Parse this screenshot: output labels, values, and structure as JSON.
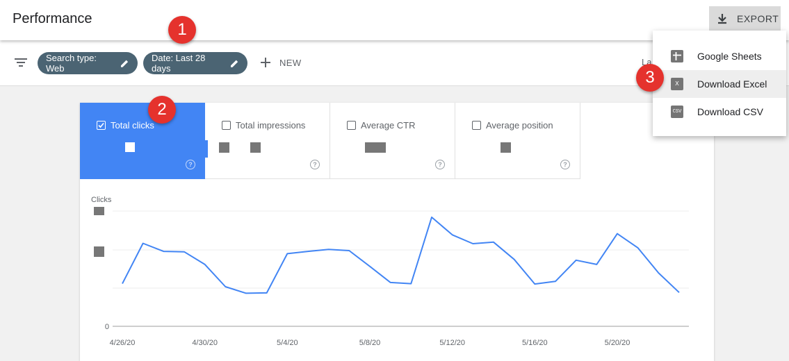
{
  "header": {
    "title": "Performance",
    "export_label": "EXPORT"
  },
  "filters": {
    "chips": [
      {
        "label": "Search type: Web"
      },
      {
        "label": "Date: Last 28 days"
      }
    ],
    "new_label": "NEW",
    "last_updated": "La"
  },
  "badges": [
    "1",
    "2",
    "3"
  ],
  "metrics": [
    {
      "label": "Total clicks",
      "checked": true
    },
    {
      "label": "Total impressions",
      "checked": false
    },
    {
      "label": "Average CTR",
      "checked": false
    },
    {
      "label": "Average position",
      "checked": false
    }
  ],
  "export_menu": {
    "items": [
      {
        "label": "Google Sheets",
        "icon": "sheets-icon"
      },
      {
        "label": "Download Excel",
        "icon": "excel-icon",
        "icon_text": "X"
      },
      {
        "label": "Download CSV",
        "icon": "csv-icon",
        "icon_text": "CSV"
      }
    ]
  },
  "colors": {
    "accent": "#4285f4",
    "chip": "#4b6473",
    "badge": "#e5322d"
  },
  "chart_data": {
    "type": "line",
    "ylabel": "Clicks",
    "y_tick_labels": [
      "0"
    ],
    "x_tick_labels": [
      "4/26/20",
      "4/30/20",
      "5/4/20",
      "5/8/20",
      "5/12/20",
      "5/16/20",
      "5/20/20"
    ],
    "x_tick_indices": [
      0,
      4,
      8,
      12,
      16,
      20,
      24
    ],
    "ylim": [
      0,
      300
    ],
    "grid": true,
    "series": [
      {
        "values": [
          111,
          216,
          195,
          194,
          161,
          103,
          86,
          87,
          189,
          195,
          200,
          197,
          156,
          114,
          111,
          284,
          238,
          215,
          219,
          174,
          110,
          117,
          172,
          161,
          241,
          204,
          139,
          88
        ]
      }
    ]
  }
}
